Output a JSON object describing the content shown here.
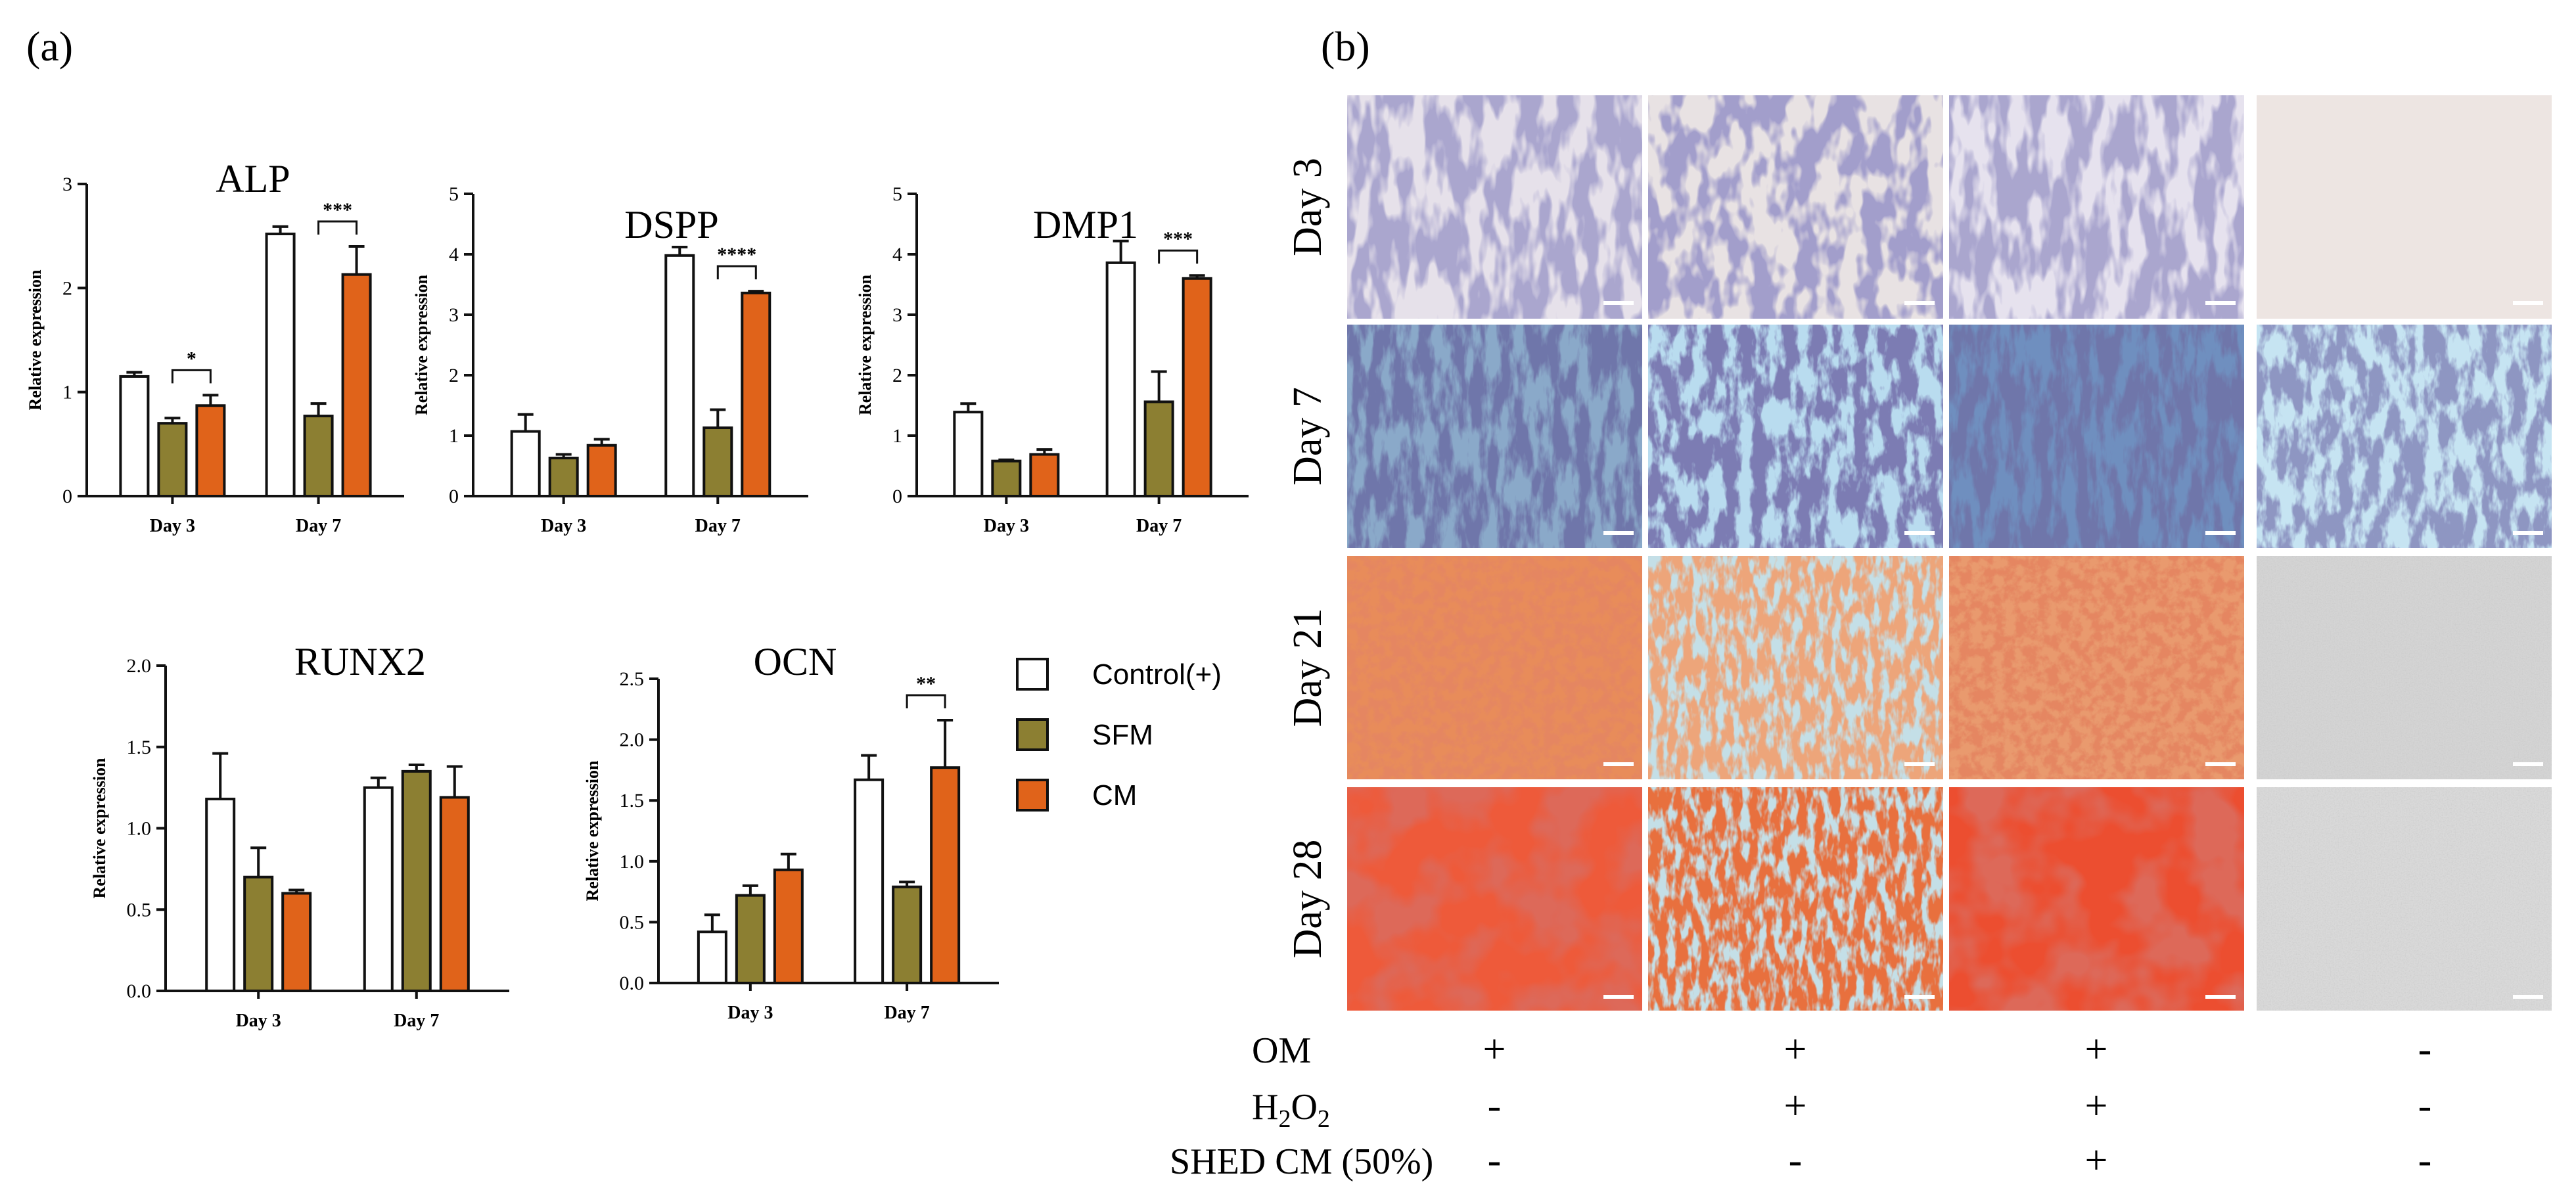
{
  "panel_a_label": "(a)",
  "panel_b_label": "(b)",
  "colors": {
    "control": "#ffffff",
    "sfm": "#8c7f32",
    "cm": "#e0631a",
    "axis": "#111111"
  },
  "chart_data": [
    {
      "id": "alp",
      "type": "bar",
      "title": "ALP",
      "ylabel": "Relative expression",
      "ylim": [
        0,
        3
      ],
      "yticks": [
        0,
        1,
        2,
        3
      ],
      "ytick_labels": [
        "0",
        "1",
        "2",
        "3"
      ],
      "categories": [
        "Day 3",
        "Day 7"
      ],
      "series": [
        {
          "name": "Control(+)",
          "values": [
            1.15,
            2.52
          ],
          "errors": [
            0.04,
            0.07
          ]
        },
        {
          "name": "SFM",
          "values": [
            0.7,
            0.77
          ],
          "errors": [
            0.05,
            0.12
          ]
        },
        {
          "name": "CM",
          "values": [
            0.87,
            2.13
          ],
          "errors": [
            0.1,
            0.27
          ]
        }
      ],
      "significance": [
        {
          "group": 0,
          "label": "*"
        },
        {
          "group": 1,
          "label": "***"
        }
      ]
    },
    {
      "id": "dspp",
      "type": "bar",
      "title": "DSPP",
      "ylabel": "Relative expression",
      "ylim": [
        0,
        5
      ],
      "yticks": [
        0,
        1,
        2,
        3,
        4,
        5
      ],
      "ytick_labels": [
        "0",
        "1",
        "2",
        "3",
        "4",
        "5"
      ],
      "categories": [
        "Day 3",
        "Day 7"
      ],
      "series": [
        {
          "name": "Control(+)",
          "values": [
            1.07,
            3.98
          ],
          "errors": [
            0.28,
            0.14
          ]
        },
        {
          "name": "SFM",
          "values": [
            0.63,
            1.13
          ],
          "errors": [
            0.06,
            0.3
          ]
        },
        {
          "name": "CM",
          "values": [
            0.84,
            3.36
          ],
          "errors": [
            0.1,
            0.03
          ]
        }
      ],
      "significance": [
        {
          "group": 1,
          "label": "****"
        }
      ]
    },
    {
      "id": "dmp1",
      "type": "bar",
      "title": "DMP1",
      "ylabel": "Relative expression",
      "ylim": [
        0,
        5
      ],
      "yticks": [
        0,
        1,
        2,
        3,
        4,
        5
      ],
      "ytick_labels": [
        "0",
        "1",
        "2",
        "3",
        "4",
        "5"
      ],
      "categories": [
        "Day 3",
        "Day 7"
      ],
      "series": [
        {
          "name": "Control(+)",
          "values": [
            1.39,
            3.86
          ],
          "errors": [
            0.14,
            0.36
          ]
        },
        {
          "name": "SFM",
          "values": [
            0.58,
            1.56
          ],
          "errors": [
            0.02,
            0.5
          ]
        },
        {
          "name": "CM",
          "values": [
            0.69,
            3.6
          ],
          "errors": [
            0.08,
            0.05
          ]
        }
      ],
      "significance": [
        {
          "group": 1,
          "label": "***"
        }
      ]
    },
    {
      "id": "runx2",
      "type": "bar",
      "title": "RUNX2",
      "ylabel": "Relative expression",
      "ylim": [
        0,
        2
      ],
      "yticks": [
        0,
        0.5,
        1,
        1.5,
        2
      ],
      "ytick_labels": [
        "0.0",
        "0.5",
        "1.0",
        "1.5",
        "2.0"
      ],
      "categories": [
        "Day 3",
        "Day 7"
      ],
      "series": [
        {
          "name": "Control(+)",
          "values": [
            1.18,
            1.25
          ],
          "errors": [
            0.28,
            0.06
          ]
        },
        {
          "name": "SFM",
          "values": [
            0.7,
            1.35
          ],
          "errors": [
            0.18,
            0.04
          ]
        },
        {
          "name": "CM",
          "values": [
            0.6,
            1.19
          ],
          "errors": [
            0.02,
            0.19
          ]
        }
      ],
      "significance": []
    },
    {
      "id": "ocn",
      "type": "bar",
      "title": "OCN",
      "ylabel": "Relative expression",
      "ylim": [
        0,
        2.5
      ],
      "yticks": [
        0,
        0.5,
        1,
        1.5,
        2,
        2.5
      ],
      "ytick_labels": [
        "0.0",
        "0.5",
        "1.0",
        "1.5",
        "2.0",
        "2.5"
      ],
      "categories": [
        "Day 3",
        "Day 7"
      ],
      "series": [
        {
          "name": "Control(+)",
          "values": [
            0.42,
            1.67
          ],
          "errors": [
            0.14,
            0.2
          ]
        },
        {
          "name": "SFM",
          "values": [
            0.72,
            0.79
          ],
          "errors": [
            0.08,
            0.04
          ]
        },
        {
          "name": "CM",
          "values": [
            0.93,
            1.77
          ],
          "errors": [
            0.13,
            0.39
          ]
        }
      ],
      "significance": [
        {
          "group": 1,
          "label": "**"
        }
      ]
    }
  ],
  "legend": [
    {
      "label": "Control(+)",
      "color_key": "control"
    },
    {
      "label": "SFM",
      "color_key": "sfm"
    },
    {
      "label": "CM",
      "color_key": "cm"
    }
  ],
  "micrographs": {
    "rows": [
      {
        "label": "Day 3",
        "stain": "alp-light"
      },
      {
        "label": "Day 7",
        "stain": "alp-dark"
      },
      {
        "label": "Day 21",
        "stain": "ars"
      },
      {
        "label": "Day 28",
        "stain": "ars-dense"
      }
    ],
    "columns": 4,
    "conditions": [
      {
        "label": "OM",
        "marks": [
          "+",
          "+",
          "+",
          "-"
        ]
      },
      {
        "label": "H2O2",
        "marks": [
          "-",
          "+",
          "+",
          "-"
        ]
      },
      {
        "label": "SHED CM (50%)",
        "marks": [
          "-",
          "-",
          "+",
          "-"
        ]
      }
    ]
  }
}
